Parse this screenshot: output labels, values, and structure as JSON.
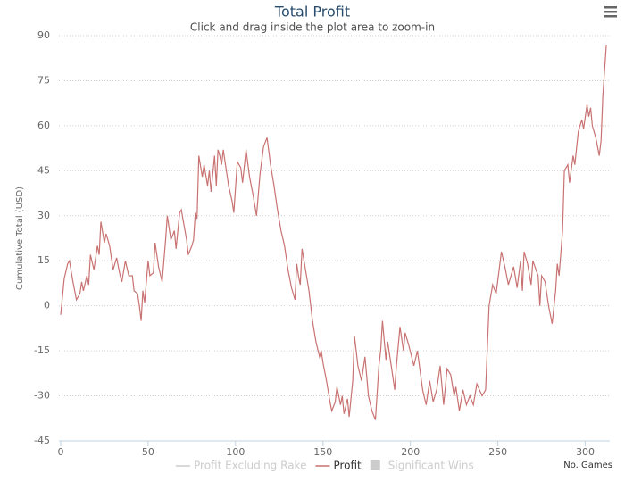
{
  "chart_data": {
    "type": "line",
    "title": "Total Profit",
    "subtitle": "Click and drag inside the plot area to zoom-in",
    "x_label": "No. Games",
    "y_label": "Cumulative Total (USD)",
    "xlim": [
      -1,
      314
    ],
    "xticks": [
      0,
      50,
      100,
      150,
      200,
      250,
      300
    ],
    "ylim": [
      -45,
      90
    ],
    "yticks": [
      -45,
      -30,
      -15,
      0,
      15,
      30,
      45,
      60,
      75,
      90
    ],
    "grid": true,
    "legend": [
      {
        "name": "Profit Excluding Rake",
        "color": "#cccccc",
        "symbol": "line"
      },
      {
        "name": "Profit",
        "color": "#c97272",
        "symbol": "line"
      },
      {
        "name": "Significant Wins",
        "color": "#cccccc",
        "symbol": "box"
      }
    ],
    "series": [
      {
        "name": "Profit",
        "color": "#c97272",
        "x": [
          0,
          2,
          4,
          5,
          7,
          9,
          11,
          12,
          13,
          15,
          16,
          17,
          19,
          21,
          22,
          23,
          25,
          26,
          28,
          30,
          32,
          34,
          35,
          37,
          39,
          41,
          42,
          44,
          45,
          46,
          47,
          48,
          50,
          51,
          53,
          54,
          56,
          58,
          60,
          61,
          63,
          65,
          66,
          68,
          69,
          72,
          73,
          75,
          76,
          77,
          78,
          79,
          81,
          82,
          84,
          85,
          86,
          88,
          89,
          90,
          91,
          92,
          93,
          96,
          98,
          99,
          101,
          103,
          104,
          106,
          108,
          110,
          112,
          114,
          116,
          118,
          120,
          122,
          124,
          126,
          128,
          130,
          132,
          134,
          135,
          136,
          137,
          138,
          140,
          142,
          144,
          146,
          148,
          149,
          150,
          152,
          154,
          155,
          157,
          158,
          160,
          161,
          162,
          164,
          165,
          167,
          168,
          170,
          172,
          174,
          176,
          178,
          180,
          182,
          183,
          184,
          186,
          187,
          189,
          191,
          192,
          194,
          196,
          197,
          199,
          202,
          204,
          207,
          209,
          211,
          213,
          215,
          217,
          219,
          221,
          223,
          225,
          226,
          228,
          230,
          232,
          234,
          236,
          238,
          241,
          243,
          245,
          247,
          249,
          252,
          254,
          256,
          259,
          261,
          263,
          264,
          265,
          267,
          269,
          270,
          273,
          274,
          275,
          277,
          279,
          281,
          283,
          284,
          285,
          287,
          288,
          290,
          291,
          293,
          294,
          296,
          298,
          299,
          301,
          302,
          303,
          304,
          306,
          308,
          309,
          310,
          312
        ],
        "values": [
          -3,
          9,
          14,
          15,
          8,
          2,
          4,
          8,
          5,
          10,
          7,
          17,
          12,
          20,
          17,
          28,
          21,
          24,
          20,
          12,
          16,
          10,
          8,
          15,
          10,
          10,
          5,
          4,
          0,
          -5,
          5,
          1,
          15,
          10,
          11,
          21,
          13,
          8,
          22,
          30,
          22,
          25,
          19,
          31,
          32,
          22,
          17,
          20,
          22,
          31,
          29,
          50,
          43,
          47,
          40,
          45,
          38,
          50,
          40,
          52,
          50,
          47,
          52,
          40,
          35,
          31,
          48,
          46,
          41,
          52,
          43,
          37,
          30,
          44,
          53,
          56,
          47,
          40,
          32,
          25,
          20,
          12,
          6,
          2,
          14,
          10,
          7,
          19,
          12,
          5,
          -5,
          -12,
          -17,
          -15,
          -19,
          -25,
          -32,
          -35,
          -32,
          -27,
          -33,
          -30,
          -36,
          -31,
          -37,
          -25,
          -10,
          -20,
          -25,
          -17,
          -30,
          -35,
          -38,
          -20,
          -15,
          -5,
          -18,
          -12,
          -20,
          -28,
          -20,
          -7,
          -15,
          -9,
          -13,
          -20,
          -15,
          -28,
          -33,
          -25,
          -32,
          -28,
          -20,
          -33,
          -21,
          -23,
          -30,
          -27,
          -35,
          -28,
          -33,
          -30,
          -33,
          -26,
          -30,
          -28,
          0,
          7,
          4,
          18,
          13,
          7,
          13,
          6,
          15,
          5,
          18,
          14,
          7,
          15,
          10,
          0,
          10,
          8,
          0,
          -6,
          5,
          14,
          10,
          25,
          45,
          47,
          41,
          50,
          47,
          58,
          62,
          59,
          67,
          63,
          66,
          60,
          56,
          50,
          55,
          70,
          87
        ]
      }
    ]
  }
}
